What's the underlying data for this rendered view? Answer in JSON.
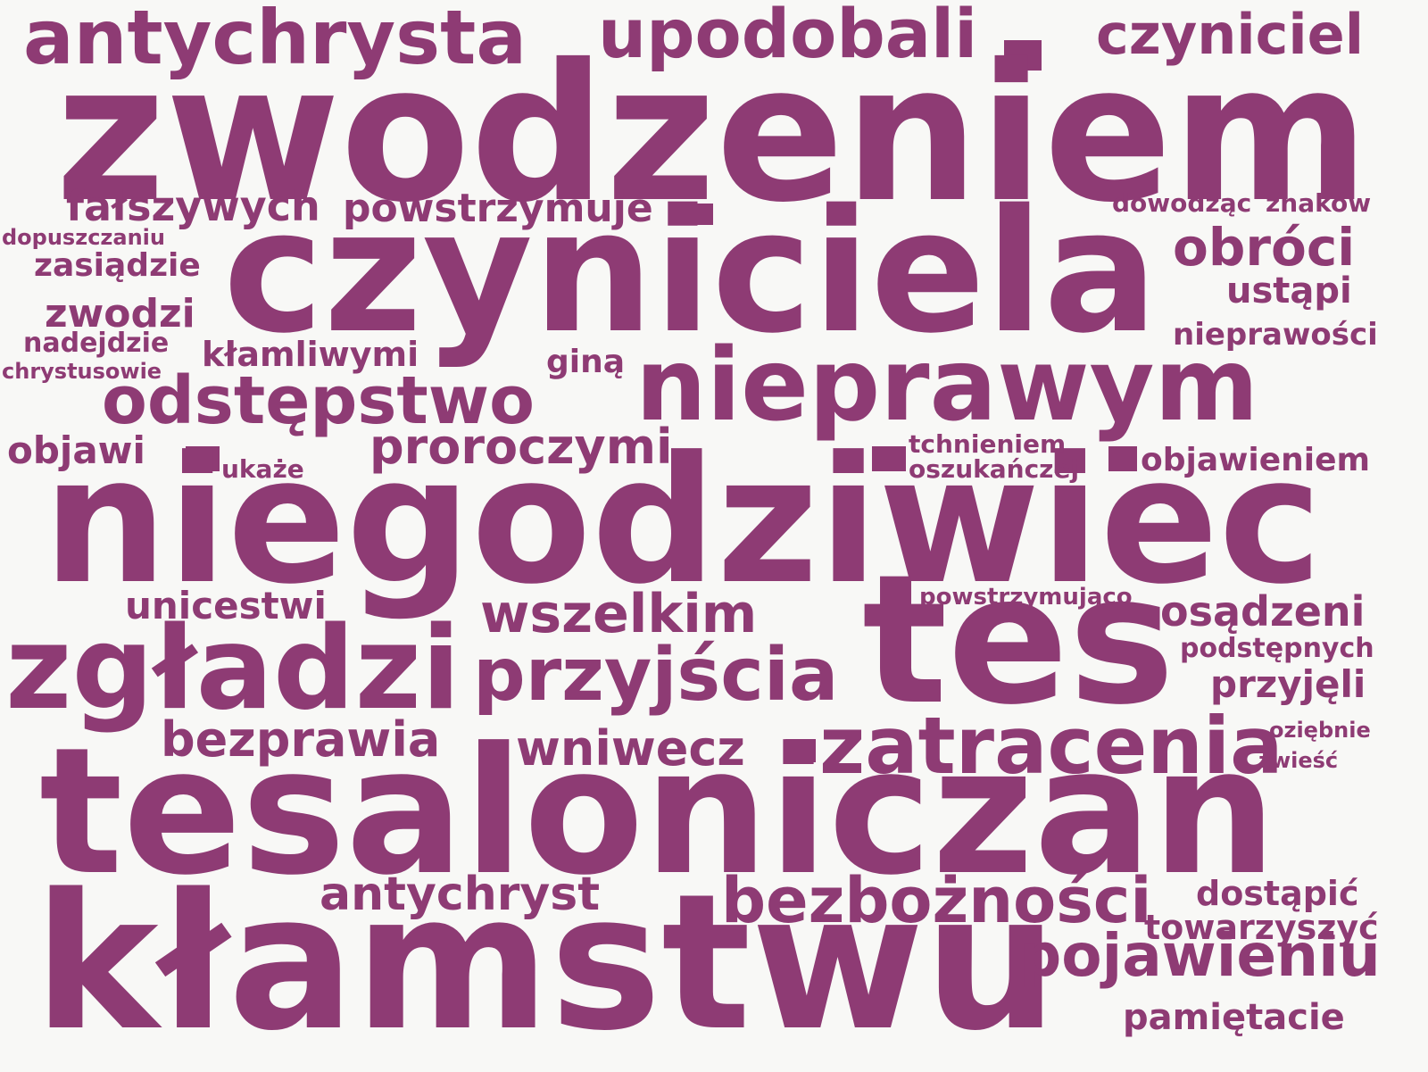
{
  "accent_color": "#8e3b74",
  "background_color": "#f8f8f6",
  "words": [
    "zwodzeniem",
    "czyniciela",
    "niegodziwiec",
    "tesaloniczan",
    "kłamstwu",
    "tes",
    "nieprawym",
    "zgładzi",
    "przyjścia",
    "zatracenia",
    "odstępstwo",
    "antychrysta",
    "upodobali",
    "czyniciel",
    "bezbożności",
    "pojawieniu",
    "obróci",
    "wszelkim",
    "proroczymi",
    "bezprawia",
    "wniwecz",
    "antychryst",
    "fałszywych",
    "powstrzymuje",
    "osądzeni",
    "unicestwi",
    "zwodzi",
    "zasiądzie",
    "ustąpi",
    "objawi",
    "kłamliwymi",
    "przyjęli",
    "pamiętacie",
    "dostąpić",
    "towarzyszyć",
    "objawieniem",
    "nieprawości",
    "podstępnych",
    "nadejdzie",
    "chrystusowie",
    "dopuszczaniu",
    "dowodząc",
    "znaków",
    "giną",
    "ukaże",
    "tchnieniem",
    "oszukańczej",
    "powstrzymująco",
    "oziębnie",
    "zwieść"
  ]
}
